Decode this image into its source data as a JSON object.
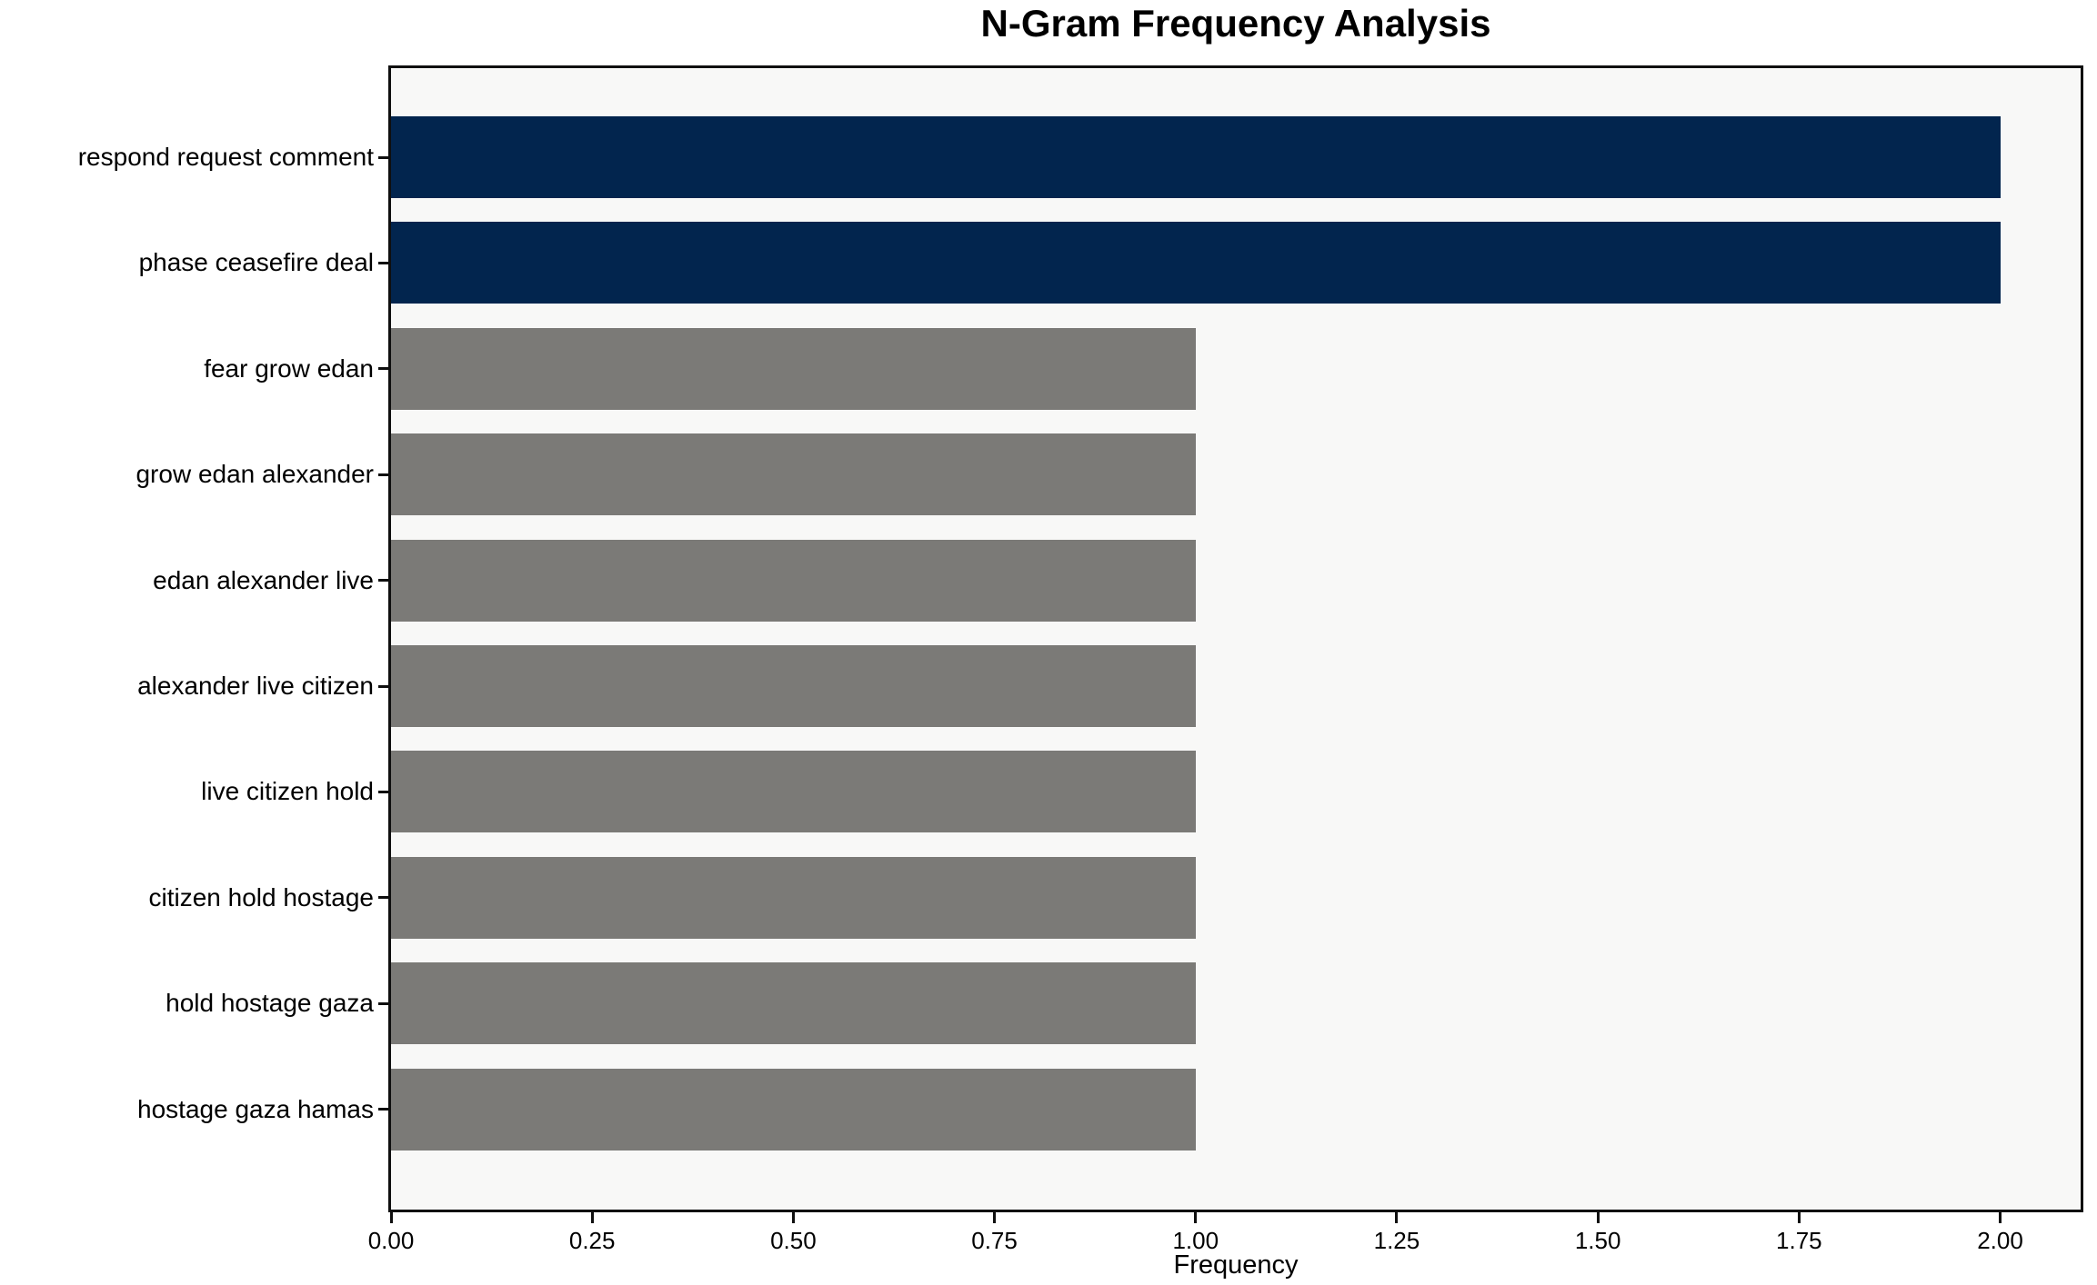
{
  "chart_data": {
    "type": "bar",
    "orientation": "horizontal",
    "title": "N-Gram Frequency Analysis",
    "xlabel": "Frequency",
    "ylabel": "",
    "categories": [
      "respond request comment",
      "phase ceasefire deal",
      "fear grow edan",
      "grow edan alexander",
      "edan alexander live",
      "alexander live citizen",
      "live citizen hold",
      "citizen hold hostage",
      "hold hostage gaza",
      "hostage gaza hamas"
    ],
    "values": [
      2,
      2,
      1,
      1,
      1,
      1,
      1,
      1,
      1,
      1
    ],
    "bar_colors": [
      "#02254e",
      "#02254e",
      "#7b7a77",
      "#7b7a77",
      "#7b7a77",
      "#7b7a77",
      "#7b7a77",
      "#7b7a77",
      "#7b7a77",
      "#7b7a77"
    ],
    "xlim": [
      0,
      2.1
    ],
    "xticks": [
      0.0,
      0.25,
      0.5,
      0.75,
      1.0,
      1.25,
      1.5,
      1.75,
      2.0
    ],
    "xtick_labels": [
      "0.00",
      "0.25",
      "0.50",
      "0.75",
      "1.00",
      "1.25",
      "1.50",
      "1.75",
      "2.00"
    ],
    "grid": false,
    "legend": null,
    "bar_height_fraction": 0.8,
    "colors": {
      "highlight_bar": "#02254e",
      "default_bar": "#7b7a77",
      "plot_background": "#f8f8f7",
      "figure_background": "#ffffff",
      "spine": "#0f0f0f",
      "text": "#000000"
    }
  }
}
